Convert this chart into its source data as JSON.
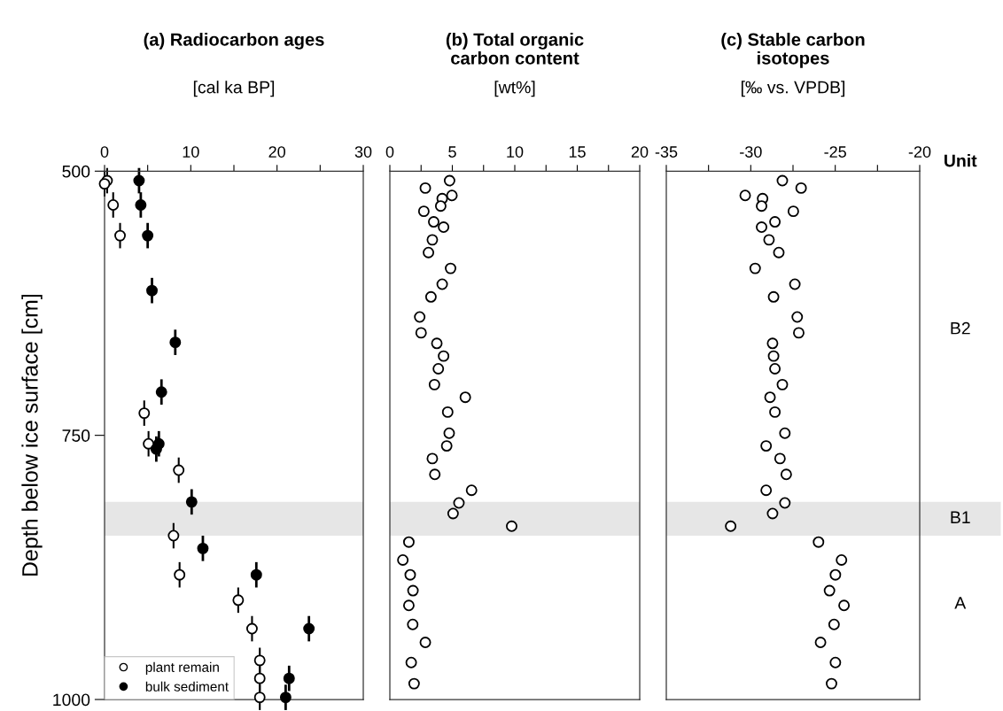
{
  "chart_data": [
    {
      "type": "scatter",
      "title": "(a) Radiocarbon ages",
      "subtitle": "[cal ka BP]",
      "ylabel": "Depth below ice surface [cm]",
      "xlim": [
        0,
        30
      ],
      "xticks": [
        0,
        {
          "value": 5,
          "label": null
        },
        10,
        {
          "value": 15,
          "label": null
        },
        20,
        {
          "value": 25,
          "label": null
        },
        30
      ],
      "ylim": [
        1000,
        500
      ],
      "yticks": [
        500,
        750,
        1000
      ],
      "marker": "circle",
      "legend": "bottom left",
      "grid": false,
      "bands": [
        {
          "axis": "y",
          "from": 813,
          "to": 845,
          "color": "#e6e6e6"
        }
      ],
      "series": [
        {
          "name": "plant remain",
          "color": "#ffffff",
          "x": [
            0.3,
            0.0,
            1.0,
            1.8,
            4.6,
            5.1,
            8.6,
            8.0,
            8.7,
            15.5,
            17.1,
            18.0,
            18.0,
            18.0
          ],
          "values": [
            509,
            512,
            532,
            561,
            729,
            758,
            783,
            845,
            882,
            906,
            933,
            963,
            980,
            998
          ],
          "errors": [
            12,
            12,
            12,
            12,
            12,
            12,
            12,
            12,
            12,
            12,
            12,
            12,
            12,
            12
          ]
        },
        {
          "name": "bulk sediment",
          "color": "#000000",
          "x": [
            4.0,
            4.2,
            5.0,
            5.5,
            8.2,
            6.6,
            6.3,
            6.0,
            10.1,
            11.4,
            17.6,
            23.7,
            21.4,
            21.0
          ],
          "values": [
            509,
            532,
            561,
            613,
            662,
            709,
            758,
            763,
            813,
            857,
            882,
            933,
            980,
            998
          ],
          "errors": [
            12,
            12,
            12,
            12,
            12,
            12,
            12,
            12,
            12,
            12,
            12,
            12,
            12,
            12
          ]
        }
      ]
    },
    {
      "type": "scatter",
      "title": "(b) Total organic\ncarbon content",
      "subtitle": "[wt%]",
      "xlim": [
        0,
        20
      ],
      "xticks": [
        0,
        {
          "value": 2.5,
          "label": null
        },
        5,
        {
          "value": 7.5,
          "label": null
        },
        10,
        {
          "value": 12.5,
          "label": null
        },
        15,
        {
          "value": 17.5,
          "label": null
        },
        20
      ],
      "ylim": [
        1000,
        500
      ],
      "tick_labels": "x",
      "marker": "circle",
      "grid": false,
      "bands": [
        {
          "axis": "y",
          "from": 813,
          "to": 845,
          "color": "#e6e6e6"
        }
      ],
      "series": [
        {
          "color": "#ffffff",
          "x": [
            4.78,
            2.84,
            4.97,
            4.19,
            4.07,
            2.72,
            3.51,
            4.3,
            3.4,
            3.09,
            4.86,
            4.19,
            3.29,
            2.39,
            2.5,
            3.76,
            4.3,
            3.88,
            3.57,
            6.04,
            4.63,
            4.75,
            4.55,
            3.4,
            3.6,
            6.54,
            5.53,
            5.06,
            9.75,
            1.52,
            1.04,
            1.63,
            1.85,
            1.52,
            1.83,
            2.84,
            1.71,
            1.94
          ],
          "values": [
            509,
            516,
            523,
            526,
            533,
            538,
            548,
            553,
            565,
            577,
            592,
            607,
            619,
            638,
            653,
            663,
            675,
            687,
            702,
            714,
            728,
            748,
            760,
            772,
            787,
            802,
            814,
            824,
            836,
            851,
            868,
            882,
            897,
            911,
            929,
            946,
            965,
            985
          ]
        }
      ]
    },
    {
      "type": "scatter",
      "title": "(c) Stable carbon\nisotopes",
      "subtitle": "[‰ vs. VPDB]",
      "xlim": [
        -35,
        -20
      ],
      "xticks": [
        -35,
        {
          "value": -32.5,
          "label": null
        },
        -30,
        {
          "value": -27.5,
          "label": null
        },
        -25,
        {
          "value": -22.5,
          "label": null
        },
        -20
      ],
      "ylim": [
        1000,
        500
      ],
      "tick_labels": "x",
      "marker": "circle",
      "grid": false,
      "annotations": [
        "Unit",
        "B2",
        "A"
      ],
      "bands": [
        {
          "axis": "y",
          "from": 813,
          "to": 845,
          "label": "B1",
          "color": "#e6e6e6"
        }
      ],
      "series": [
        {
          "color": "#ffffff",
          "x": [
            -28.13,
            -27.02,
            -30.33,
            -29.3,
            -29.36,
            -27.48,
            -28.57,
            -29.36,
            -28.92,
            -28.34,
            -29.74,
            -27.39,
            -28.65,
            -27.25,
            -27.16,
            -28.71,
            -28.65,
            -28.57,
            -28.13,
            -28.86,
            -28.57,
            -27.98,
            -29.09,
            -28.27,
            -27.9,
            -29.09,
            -27.98,
            -28.71,
            -31.19,
            -25.99,
            -24.63,
            -24.99,
            -25.34,
            -24.48,
            -25.07,
            -25.87,
            -24.99,
            -25.22
          ],
          "values": [
            509,
            516,
            523,
            526,
            533,
            538,
            548,
            553,
            565,
            577,
            592,
            607,
            619,
            638,
            653,
            663,
            675,
            687,
            702,
            714,
            728,
            748,
            760,
            772,
            787,
            802,
            814,
            824,
            836,
            851,
            868,
            882,
            897,
            911,
            929,
            946,
            965,
            985
          ]
        }
      ]
    }
  ]
}
